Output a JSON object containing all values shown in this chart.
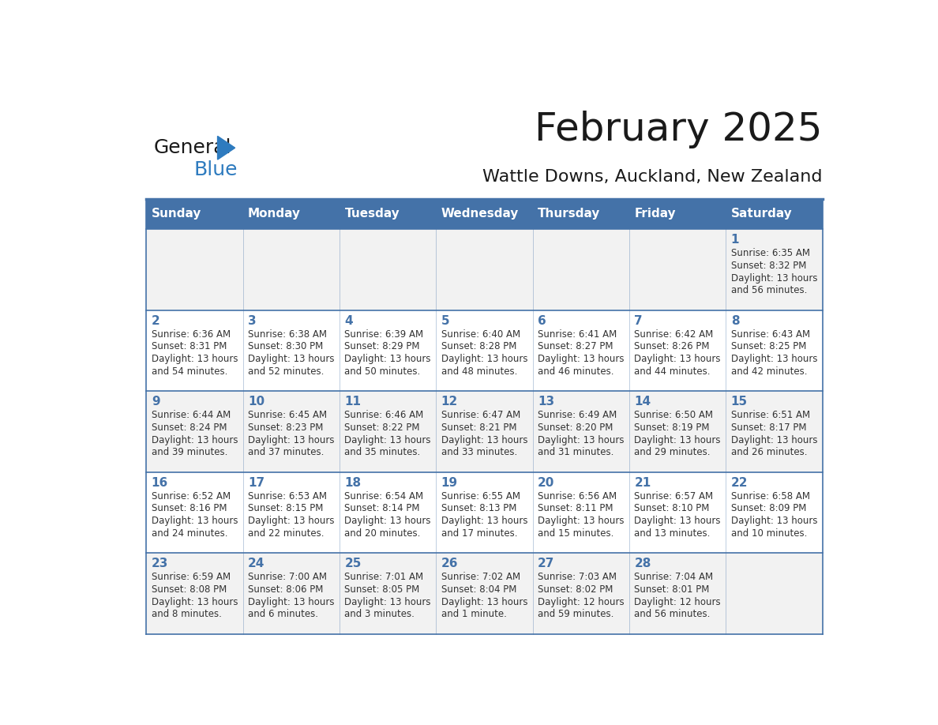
{
  "title": "February 2025",
  "subtitle": "Wattle Downs, Auckland, New Zealand",
  "days_of_week": [
    "Sunday",
    "Monday",
    "Tuesday",
    "Wednesday",
    "Thursday",
    "Friday",
    "Saturday"
  ],
  "header_bg": "#4472A8",
  "header_text": "#FFFFFF",
  "row_bg_odd": "#F2F2F2",
  "row_bg_even": "#FFFFFF",
  "cell_border": "#4472A8",
  "day_number_color": "#4472A8",
  "text_color": "#333333",
  "logo_general_color": "#1a1a1a",
  "logo_blue_color": "#2e7bbf",
  "calendar_data": [
    [
      null,
      null,
      null,
      null,
      null,
      null,
      {
        "day": 1,
        "sunrise": "6:35 AM",
        "sunset": "8:32 PM",
        "daylight_line1": "Daylight: 13 hours",
        "daylight_line2": "and 56 minutes."
      }
    ],
    [
      {
        "day": 2,
        "sunrise": "6:36 AM",
        "sunset": "8:31 PM",
        "daylight_line1": "Daylight: 13 hours",
        "daylight_line2": "and 54 minutes."
      },
      {
        "day": 3,
        "sunrise": "6:38 AM",
        "sunset": "8:30 PM",
        "daylight_line1": "Daylight: 13 hours",
        "daylight_line2": "and 52 minutes."
      },
      {
        "day": 4,
        "sunrise": "6:39 AM",
        "sunset": "8:29 PM",
        "daylight_line1": "Daylight: 13 hours",
        "daylight_line2": "and 50 minutes."
      },
      {
        "day": 5,
        "sunrise": "6:40 AM",
        "sunset": "8:28 PM",
        "daylight_line1": "Daylight: 13 hours",
        "daylight_line2": "and 48 minutes."
      },
      {
        "day": 6,
        "sunrise": "6:41 AM",
        "sunset": "8:27 PM",
        "daylight_line1": "Daylight: 13 hours",
        "daylight_line2": "and 46 minutes."
      },
      {
        "day": 7,
        "sunrise": "6:42 AM",
        "sunset": "8:26 PM",
        "daylight_line1": "Daylight: 13 hours",
        "daylight_line2": "and 44 minutes."
      },
      {
        "day": 8,
        "sunrise": "6:43 AM",
        "sunset": "8:25 PM",
        "daylight_line1": "Daylight: 13 hours",
        "daylight_line2": "and 42 minutes."
      }
    ],
    [
      {
        "day": 9,
        "sunrise": "6:44 AM",
        "sunset": "8:24 PM",
        "daylight_line1": "Daylight: 13 hours",
        "daylight_line2": "and 39 minutes."
      },
      {
        "day": 10,
        "sunrise": "6:45 AM",
        "sunset": "8:23 PM",
        "daylight_line1": "Daylight: 13 hours",
        "daylight_line2": "and 37 minutes."
      },
      {
        "day": 11,
        "sunrise": "6:46 AM",
        "sunset": "8:22 PM",
        "daylight_line1": "Daylight: 13 hours",
        "daylight_line2": "and 35 minutes."
      },
      {
        "day": 12,
        "sunrise": "6:47 AM",
        "sunset": "8:21 PM",
        "daylight_line1": "Daylight: 13 hours",
        "daylight_line2": "and 33 minutes."
      },
      {
        "day": 13,
        "sunrise": "6:49 AM",
        "sunset": "8:20 PM",
        "daylight_line1": "Daylight: 13 hours",
        "daylight_line2": "and 31 minutes."
      },
      {
        "day": 14,
        "sunrise": "6:50 AM",
        "sunset": "8:19 PM",
        "daylight_line1": "Daylight: 13 hours",
        "daylight_line2": "and 29 minutes."
      },
      {
        "day": 15,
        "sunrise": "6:51 AM",
        "sunset": "8:17 PM",
        "daylight_line1": "Daylight: 13 hours",
        "daylight_line2": "and 26 minutes."
      }
    ],
    [
      {
        "day": 16,
        "sunrise": "6:52 AM",
        "sunset": "8:16 PM",
        "daylight_line1": "Daylight: 13 hours",
        "daylight_line2": "and 24 minutes."
      },
      {
        "day": 17,
        "sunrise": "6:53 AM",
        "sunset": "8:15 PM",
        "daylight_line1": "Daylight: 13 hours",
        "daylight_line2": "and 22 minutes."
      },
      {
        "day": 18,
        "sunrise": "6:54 AM",
        "sunset": "8:14 PM",
        "daylight_line1": "Daylight: 13 hours",
        "daylight_line2": "and 20 minutes."
      },
      {
        "day": 19,
        "sunrise": "6:55 AM",
        "sunset": "8:13 PM",
        "daylight_line1": "Daylight: 13 hours",
        "daylight_line2": "and 17 minutes."
      },
      {
        "day": 20,
        "sunrise": "6:56 AM",
        "sunset": "8:11 PM",
        "daylight_line1": "Daylight: 13 hours",
        "daylight_line2": "and 15 minutes."
      },
      {
        "day": 21,
        "sunrise": "6:57 AM",
        "sunset": "8:10 PM",
        "daylight_line1": "Daylight: 13 hours",
        "daylight_line2": "and 13 minutes."
      },
      {
        "day": 22,
        "sunrise": "6:58 AM",
        "sunset": "8:09 PM",
        "daylight_line1": "Daylight: 13 hours",
        "daylight_line2": "and 10 minutes."
      }
    ],
    [
      {
        "day": 23,
        "sunrise": "6:59 AM",
        "sunset": "8:08 PM",
        "daylight_line1": "Daylight: 13 hours",
        "daylight_line2": "and 8 minutes."
      },
      {
        "day": 24,
        "sunrise": "7:00 AM",
        "sunset": "8:06 PM",
        "daylight_line1": "Daylight: 13 hours",
        "daylight_line2": "and 6 minutes."
      },
      {
        "day": 25,
        "sunrise": "7:01 AM",
        "sunset": "8:05 PM",
        "daylight_line1": "Daylight: 13 hours",
        "daylight_line2": "and 3 minutes."
      },
      {
        "day": 26,
        "sunrise": "7:02 AM",
        "sunset": "8:04 PM",
        "daylight_line1": "Daylight: 13 hours",
        "daylight_line2": "and 1 minute."
      },
      {
        "day": 27,
        "sunrise": "7:03 AM",
        "sunset": "8:02 PM",
        "daylight_line1": "Daylight: 12 hours",
        "daylight_line2": "and 59 minutes."
      },
      {
        "day": 28,
        "sunrise": "7:04 AM",
        "sunset": "8:01 PM",
        "daylight_line1": "Daylight: 12 hours",
        "daylight_line2": "and 56 minutes."
      },
      null
    ]
  ]
}
